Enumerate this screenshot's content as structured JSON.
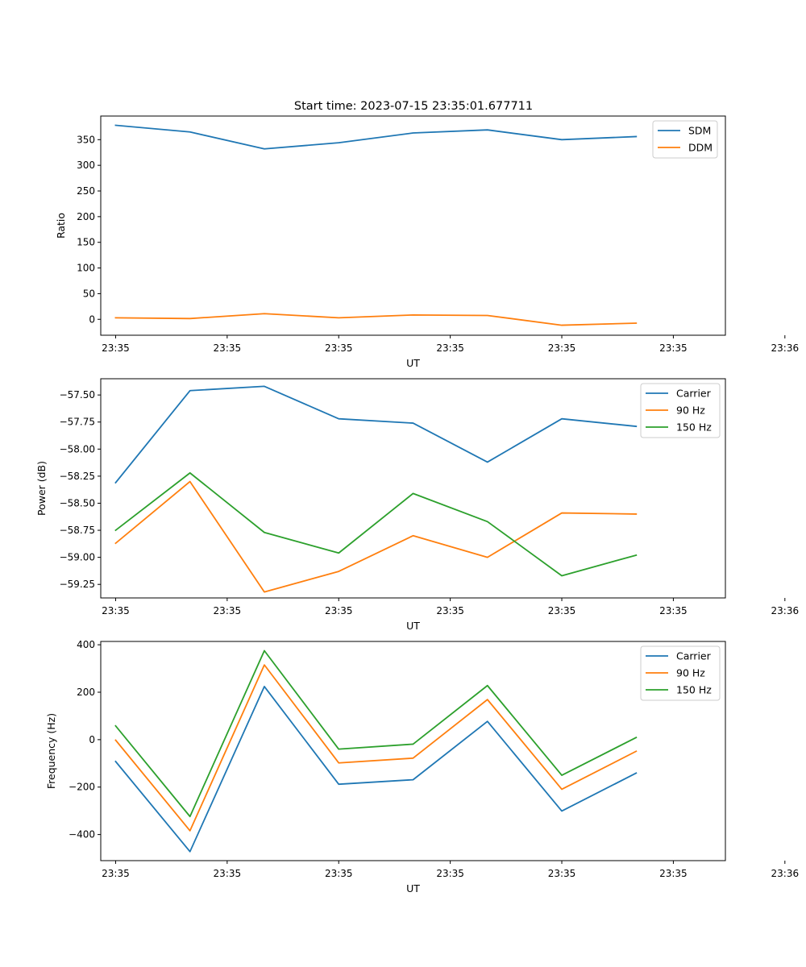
{
  "figure_title": "Start time: 2023-07-15 23:35:01.677711",
  "colors": {
    "blue": "#1f77b4",
    "orange": "#ff7f0e",
    "green": "#2ca02c"
  },
  "chart_data": [
    {
      "type": "line",
      "title": "Start time: 2023-07-15 23:35:01.677711",
      "xlabel": "UT",
      "ylabel": "Ratio",
      "x": [
        1,
        2,
        3,
        4,
        5,
        6,
        7,
        8
      ],
      "xlim": [
        0.8,
        9.2
      ],
      "x_ticks": [
        1,
        2.5,
        4,
        5.5,
        7,
        8.5,
        10
      ],
      "x_tick_labels": [
        "23:35",
        "23:35",
        "23:35",
        "23:35",
        "23:35",
        "23:35",
        "23:36"
      ],
      "ylim": [
        -31,
        396
      ],
      "y_ticks": [
        0,
        50,
        100,
        150,
        200,
        250,
        300,
        350
      ],
      "y_tick_labels": [
        "0",
        "50",
        "100",
        "150",
        "200",
        "250",
        "300",
        "350"
      ],
      "legend": "top-right",
      "series": [
        {
          "name": "SDM",
          "color": "#1f77b4",
          "values": [
            378,
            365,
            332,
            344,
            363,
            369,
            350,
            356
          ]
        },
        {
          "name": "DDM",
          "color": "#ff7f0e",
          "values": [
            3,
            1.5,
            11,
            3,
            8.5,
            7.5,
            -11.5,
            -7.5
          ]
        }
      ]
    },
    {
      "type": "line",
      "title": "",
      "xlabel": "UT",
      "ylabel": "Power (dB)",
      "x": [
        1,
        2,
        3,
        4,
        5,
        6,
        7,
        8
      ],
      "xlim": [
        0.8,
        9.2
      ],
      "x_ticks": [
        1,
        2.5,
        4,
        5.5,
        7,
        8.5,
        10
      ],
      "x_tick_labels": [
        "23:35",
        "23:35",
        "23:35",
        "23:35",
        "23:35",
        "23:35",
        "23:36"
      ],
      "ylim": [
        -59.375,
        -57.35
      ],
      "y_ticks": [
        -59.25,
        -59.0,
        -58.75,
        -58.5,
        -58.25,
        -58.0,
        -57.75,
        -57.5
      ],
      "y_tick_labels": [
        "−59.25",
        "−59.00",
        "−58.75",
        "−58.50",
        "−58.25",
        "−58.00",
        "−57.75",
        "−57.50"
      ],
      "legend": "top-right",
      "series": [
        {
          "name": "Carrier",
          "color": "#1f77b4",
          "values": [
            -58.31,
            -57.46,
            -57.42,
            -57.72,
            -57.76,
            -58.12,
            -57.72,
            -57.79
          ]
        },
        {
          "name": "90 Hz",
          "color": "#ff7f0e",
          "values": [
            -58.87,
            -58.3,
            -59.32,
            -59.13,
            -58.8,
            -59.0,
            -58.59,
            -58.6
          ]
        },
        {
          "name": "150 Hz",
          "color": "#2ca02c",
          "values": [
            -58.75,
            -58.22,
            -58.77,
            -58.96,
            -58.41,
            -58.67,
            -59.17,
            -58.98
          ]
        }
      ]
    },
    {
      "type": "line",
      "title": "",
      "xlabel": "UT",
      "ylabel": "Frequency (Hz)",
      "x": [
        1,
        2,
        3,
        4,
        5,
        6,
        7,
        8
      ],
      "xlim": [
        0.8,
        9.2
      ],
      "x_ticks": [
        1,
        2.5,
        4,
        5.5,
        7,
        8.5,
        10
      ],
      "x_tick_labels": [
        "23:35",
        "23:35",
        "23:35",
        "23:35",
        "23:35",
        "23:35",
        "23:36"
      ],
      "ylim": [
        -510,
        414
      ],
      "y_ticks": [
        -400,
        -200,
        0,
        200,
        400
      ],
      "y_tick_labels": [
        "−400",
        "−200",
        "0",
        "200",
        "400"
      ],
      "legend": "top-right",
      "series": [
        {
          "name": "Carrier",
          "color": "#1f77b4",
          "values": [
            -92,
            -472,
            224,
            -188,
            -169,
            77,
            -301,
            -141
          ]
        },
        {
          "name": "90 Hz",
          "color": "#ff7f0e",
          "values": [
            -2,
            -384,
            315,
            -98,
            -78,
            169,
            -209,
            -49
          ]
        },
        {
          "name": "150 Hz",
          "color": "#2ca02c",
          "values": [
            58,
            -324,
            375,
            -40,
            -19,
            228,
            -150,
            9
          ]
        }
      ]
    }
  ]
}
